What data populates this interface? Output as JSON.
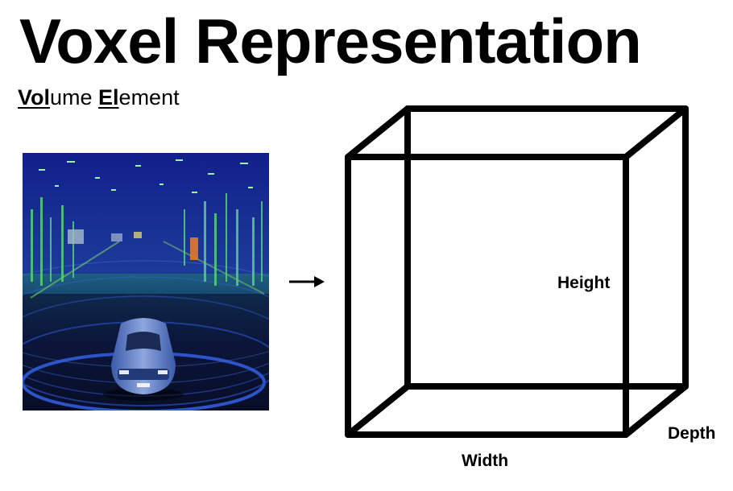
{
  "title": "Voxel Representation",
  "subtitle": {
    "part1_bold": "Vol",
    "part2": "ume ",
    "part3_bold": "El",
    "part4": "ement"
  },
  "image": {
    "subject": "lidar point cloud around car"
  },
  "arrow": {
    "icon": "right-arrow-icon"
  },
  "cube": {
    "height_label": "Height",
    "depth_label": "Depth",
    "width_label": "Width"
  }
}
